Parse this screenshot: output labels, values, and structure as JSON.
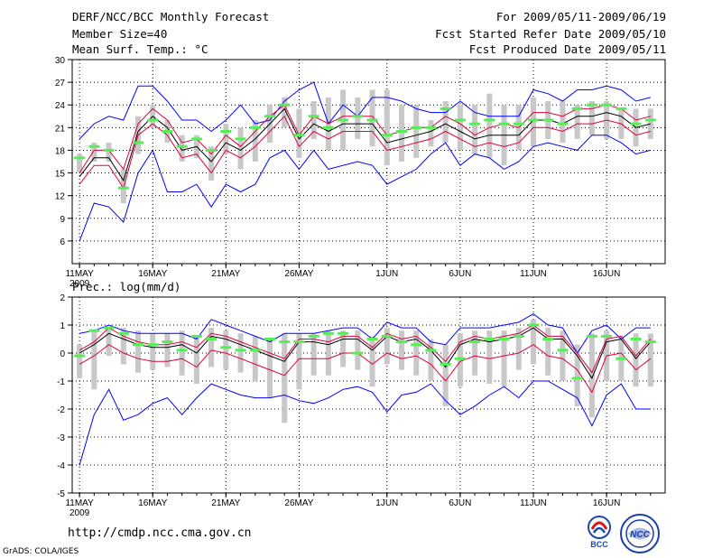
{
  "header": {
    "title": "DERF/NCC/BCC Monthly Forecast",
    "member_size": "Member Size=40",
    "variable1": "Mean Surf. Temp.: °C",
    "period": "For 2009/05/11-2009/06/19",
    "fcst_started": "Fcst Started Refer Date 2009/05/10",
    "fcst_produced": "Fcst Produced Date 2009/05/11"
  },
  "footer": {
    "url": "http://cmdp.ncc.cma.gov.cn",
    "credit": "GrADS: COLA/IGES"
  },
  "logos": {
    "bcc": "BCC",
    "ncc": "NCC"
  },
  "colors": {
    "max_min": "#0000ff",
    "spread": "#e0003c",
    "mean": "#000000",
    "obs": "#55ee55",
    "bar": "#c8c8c8"
  },
  "chart_data": [
    {
      "type": "line",
      "title": "Mean Surf. Temp.: °C",
      "xlabel": "",
      "ylabel": "",
      "ylim": [
        3,
        30
      ],
      "yticks": [
        6,
        9,
        12,
        15,
        18,
        21,
        24,
        27,
        30
      ],
      "x": [
        1,
        2,
        3,
        4,
        5,
        6,
        7,
        8,
        9,
        10,
        11,
        12,
        13,
        14,
        15,
        16,
        17,
        18,
        19,
        20,
        21,
        22,
        23,
        24,
        25,
        26,
        27,
        28,
        29,
        30,
        31,
        32,
        33,
        34,
        35,
        36,
        37,
        38,
        39,
        40
      ],
      "xlim": [
        0.5,
        41
      ],
      "xtick_labels": [
        {
          "x": 1,
          "label": "11MAY",
          "sub": "2009"
        },
        {
          "x": 6,
          "label": "16MAY"
        },
        {
          "x": 11,
          "label": "21MAY"
        },
        {
          "x": 16,
          "label": "26MAY"
        },
        {
          "x": 22,
          "label": "1JUN"
        },
        {
          "x": 27,
          "label": "6JUN"
        },
        {
          "x": 32,
          "label": "11JUN"
        },
        {
          "x": 37,
          "label": "16JUN"
        }
      ],
      "series": [
        {
          "name": "max",
          "style": "max_min",
          "values": [
            19.5,
            21.5,
            22.5,
            22,
            26.5,
            26.5,
            24.5,
            22,
            22,
            20.5,
            22,
            24,
            21.5,
            22,
            24.5,
            26,
            27,
            21.5,
            24,
            22.5,
            25,
            25,
            24.5,
            23.5,
            23,
            23,
            24.5,
            23,
            22.5,
            22.5,
            22.5,
            26,
            25.5,
            24.5,
            26,
            26,
            26.5,
            26,
            24.5,
            25
          ]
        },
        {
          "name": "min",
          "style": "max_min",
          "values": [
            6,
            11,
            10.5,
            8.5,
            15,
            18,
            12.5,
            12.5,
            13.5,
            10.5,
            13.5,
            12.5,
            13.5,
            17,
            18,
            15.5,
            18,
            15.5,
            16,
            16.5,
            16,
            13.5,
            14.5,
            15.5,
            17.5,
            19,
            16,
            17.5,
            17,
            15.5,
            16.5,
            18.5,
            19,
            18.5,
            18,
            20,
            20,
            19,
            17.5,
            18
          ]
        },
        {
          "name": "upper",
          "style": "spread",
          "values": [
            15,
            18,
            18,
            15.5,
            21.5,
            23.5,
            22,
            19,
            19.5,
            17.5,
            20,
            18.5,
            20.5,
            22.5,
            24,
            20,
            22.5,
            21.5,
            22.5,
            22.5,
            22.5,
            20,
            20.5,
            21,
            21,
            22.5,
            21.5,
            20,
            21,
            21.5,
            21,
            23,
            23,
            22.5,
            23.5,
            23.5,
            24,
            23.5,
            22,
            22.5
          ]
        },
        {
          "name": "mean",
          "style": "mean",
          "values": [
            14.5,
            17,
            17,
            14,
            20.5,
            22.5,
            21,
            18,
            18.5,
            16.5,
            19,
            18,
            19.5,
            21.5,
            23.5,
            19.5,
            21.5,
            20.5,
            21.5,
            21.5,
            21.5,
            19,
            19.5,
            20,
            20.5,
            21.5,
            20.5,
            19.5,
            20,
            20,
            20,
            22,
            22,
            21.5,
            22.5,
            22.5,
            23,
            22.5,
            21,
            21.5
          ]
        },
        {
          "name": "lower",
          "style": "spread",
          "values": [
            13.5,
            16,
            16,
            13,
            20,
            21.5,
            20,
            17,
            17.5,
            15,
            18,
            17,
            18.5,
            20.5,
            22.5,
            18.5,
            20.5,
            19.5,
            20.5,
            20.5,
            20.5,
            18,
            18.5,
            19,
            19.5,
            20.5,
            19.5,
            18.5,
            19,
            18.5,
            19,
            21,
            21,
            20.5,
            21.5,
            21.5,
            22,
            21.5,
            20,
            20.5
          ]
        }
      ],
      "bars": {
        "low": [
          15,
          16.5,
          16.5,
          11,
          17.5,
          21,
          19,
          16.5,
          17,
          14,
          17.5,
          15.5,
          16.5,
          19,
          21,
          17,
          19.5,
          18,
          18,
          19.5,
          18.5,
          16,
          16.5,
          17,
          18.5,
          19,
          18,
          17.5,
          17,
          16,
          18,
          18.5,
          19.5,
          19,
          19.5,
          20,
          19.5,
          19.5,
          18.5,
          19.5
        ],
        "high": [
          17.5,
          19,
          19,
          15.5,
          22.5,
          24,
          22,
          20,
          20,
          18.5,
          21.5,
          21,
          22,
          24,
          25,
          23.5,
          24.5,
          25,
          26,
          25,
          26,
          26,
          24,
          24,
          22,
          24.5,
          24,
          24,
          25.5,
          24,
          24,
          25,
          24.5,
          24.5,
          24,
          24.5,
          24.5,
          23.5,
          23.5,
          23.5
        ]
      },
      "obs": [
        17,
        18.5,
        18,
        13,
        19,
        22,
        20.5,
        18.5,
        19.5,
        18,
        20.5,
        19.5,
        21,
        22.5,
        24,
        20,
        22.5,
        21,
        22,
        22.5,
        22,
        20,
        20.5,
        21,
        21,
        23.5,
        22,
        21.5,
        22,
        21.5,
        21.5,
        22,
        22,
        21.5,
        23.5,
        24,
        24,
        23.5,
        21.5,
        22
      ]
    },
    {
      "type": "line",
      "title": "Prec.: log(mm/d)",
      "xlabel": "",
      "ylabel": "",
      "ylim": [
        -5,
        2
      ],
      "yticks": [
        -5,
        -4,
        -3,
        -2,
        -1,
        0,
        1,
        2
      ],
      "x": [
        1,
        2,
        3,
        4,
        5,
        6,
        7,
        8,
        9,
        10,
        11,
        12,
        13,
        14,
        15,
        16,
        17,
        18,
        19,
        20,
        21,
        22,
        23,
        24,
        25,
        26,
        27,
        28,
        29,
        30,
        31,
        32,
        33,
        34,
        35,
        36,
        37,
        38,
        39,
        40
      ],
      "xlim": [
        0.5,
        41
      ],
      "xtick_labels": [
        {
          "x": 1,
          "label": "11MAY",
          "sub": "2009"
        },
        {
          "x": 6,
          "label": "16MAY"
        },
        {
          "x": 11,
          "label": "21MAY"
        },
        {
          "x": 16,
          "label": "26MAY"
        },
        {
          "x": 22,
          "label": "1JUN"
        },
        {
          "x": 27,
          "label": "6JUN"
        },
        {
          "x": 32,
          "label": "11JUN"
        },
        {
          "x": 37,
          "label": "16JUN"
        }
      ],
      "series": [
        {
          "name": "max",
          "style": "max_min",
          "values": [
            0.7,
            0.8,
            1.0,
            0.8,
            0.7,
            0.7,
            0.7,
            0.7,
            0.5,
            1.2,
            1.0,
            0.8,
            0.6,
            0.4,
            0.7,
            0.7,
            0.7,
            0.8,
            0.9,
            0.9,
            0.5,
            1.1,
            0.9,
            0.9,
            0.4,
            0.3,
            0.9,
            0.9,
            0.9,
            1.0,
            1.1,
            1.4,
            1.0,
            0.9,
            0.0,
            0.8,
            1.0,
            0.5,
            0.9,
            0.9
          ]
        },
        {
          "name": "min",
          "style": "max_min",
          "values": [
            -4.0,
            -2.2,
            -1.3,
            -2.4,
            -2.2,
            -1.8,
            -1.6,
            -2.2,
            -1.6,
            -1.1,
            -1.3,
            -1.5,
            -1.6,
            -1.6,
            -1.5,
            -1.7,
            -1.8,
            -1.6,
            -1.3,
            -1.2,
            -1.4,
            -2.1,
            -1.5,
            -1.4,
            -1.1,
            -1.7,
            -2.2,
            -1.9,
            -1.5,
            -1.2,
            -1.6,
            -1.0,
            -1.0,
            -1.3,
            -1.6,
            -2.6,
            -1.5,
            -1.1,
            -2.0,
            -2.0
          ]
        },
        {
          "name": "upper",
          "style": "spread",
          "values": [
            0.1,
            0.4,
            0.9,
            0.6,
            0.4,
            0.3,
            0.3,
            0.4,
            0.2,
            0.7,
            0.6,
            0.4,
            0.2,
            0.0,
            -0.2,
            0.5,
            0.5,
            0.4,
            0.6,
            0.6,
            0.2,
            0.7,
            0.5,
            0.6,
            0.2,
            -0.3,
            0.4,
            0.6,
            0.5,
            0.6,
            0.7,
            1.0,
            0.6,
            0.6,
            0.0,
            -0.7,
            0.5,
            0.6,
            -0.1,
            0.5
          ]
        },
        {
          "name": "mean",
          "style": "mean",
          "values": [
            0.0,
            0.3,
            0.7,
            0.5,
            0.3,
            0.2,
            0.2,
            0.3,
            0.0,
            0.6,
            0.5,
            0.3,
            0.1,
            -0.1,
            -0.3,
            0.4,
            0.4,
            0.3,
            0.5,
            0.5,
            0.1,
            0.6,
            0.4,
            0.5,
            0.1,
            -0.5,
            0.3,
            0.5,
            0.4,
            0.5,
            0.6,
            0.9,
            0.5,
            0.5,
            -0.1,
            -0.9,
            0.4,
            0.5,
            -0.2,
            0.4
          ]
        },
        {
          "name": "lower",
          "style": "spread",
          "values": [
            -0.4,
            -0.1,
            0.3,
            0.0,
            -0.2,
            -0.3,
            -0.3,
            -0.2,
            -0.5,
            0.1,
            0.0,
            -0.2,
            -0.4,
            -0.6,
            -0.8,
            -0.2,
            -0.2,
            -0.2,
            0.0,
            0.0,
            -0.4,
            0.0,
            -0.2,
            -0.1,
            -0.4,
            -1.0,
            -0.3,
            -0.1,
            -0.2,
            -0.1,
            0.0,
            0.3,
            -0.1,
            -0.2,
            -0.6,
            -1.4,
            -0.1,
            0.0,
            -0.6,
            -0.2
          ]
        },
        {
          "name": "obs",
          "style": "obs",
          "values": [
            -0.1,
            0.8,
            0.9,
            0.7,
            0.3,
            0.3,
            0.4,
            0.1,
            0.6,
            0.5,
            0.2,
            0.1,
            0.1,
            0.5,
            0.4,
            0.4,
            0.6,
            0.7,
            0.7,
            0.0,
            0.5,
            0.6,
            0.4,
            0.3,
            0.1,
            -0.4,
            -0.2,
            0.4,
            0.5,
            0.5,
            0.6,
            1.0,
            0.5,
            0.1,
            -0.9,
            0.6,
            0.6,
            -0.2,
            0.5,
            0.4
          ]
        }
      ],
      "bars": {
        "low": [
          -0.9,
          -1.3,
          -0.1,
          -0.4,
          -0.7,
          -0.6,
          -0.5,
          -0.8,
          -1.1,
          -0.5,
          -0.6,
          -0.7,
          -1.0,
          -1.6,
          -2.5,
          -1.3,
          -0.8,
          -0.8,
          -0.5,
          -0.6,
          -1.2,
          -0.4,
          -0.6,
          -0.8,
          -1.0,
          -1.9,
          -1.2,
          -0.8,
          -1.1,
          -1.2,
          -0.6,
          -0.4,
          -0.8,
          -1.0,
          -1.9,
          -2.3,
          -1.0,
          -1.0,
          -1.2,
          -1.2
        ],
        "high": [
          0.3,
          0.8,
          0.9,
          0.9,
          0.8,
          0.7,
          0.7,
          0.8,
          0.6,
          0.9,
          0.8,
          0.7,
          0.6,
          0.5,
          0.7,
          0.7,
          0.7,
          0.8,
          0.8,
          0.8,
          0.6,
          0.9,
          0.8,
          0.8,
          0.5,
          0.3,
          0.7,
          0.8,
          0.8,
          0.8,
          0.9,
          1.2,
          0.9,
          0.8,
          0.3,
          0.7,
          0.8,
          0.6,
          0.7,
          0.7
        ]
      }
    }
  ]
}
